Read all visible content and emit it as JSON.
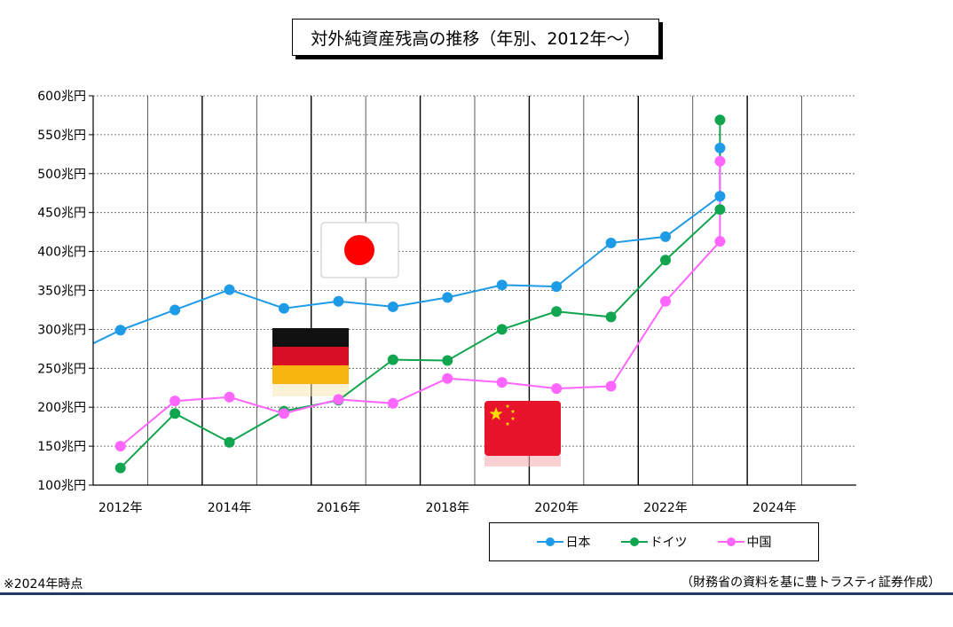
{
  "chart_data": {
    "type": "line",
    "title": "対外純資産残高の推移（年別、2012年～）",
    "y_unit": "兆円",
    "ylim": [
      100,
      600
    ],
    "y_ticks": [
      {
        "value": 100,
        "label": "100兆円"
      },
      {
        "value": 150,
        "label": "150兆円"
      },
      {
        "value": 200,
        "label": "200兆円"
      },
      {
        "value": 250,
        "label": "250兆円"
      },
      {
        "value": 300,
        "label": "300兆円"
      },
      {
        "value": 350,
        "label": "350兆円"
      },
      {
        "value": 400,
        "label": "400兆円"
      },
      {
        "value": 450,
        "label": "450兆円"
      },
      {
        "value": 500,
        "label": "500兆円"
      },
      {
        "value": 550,
        "label": "550兆円"
      },
      {
        "value": 600,
        "label": "600兆円"
      }
    ],
    "xlim": [
      2011.5,
      2025.5
    ],
    "x_ticks": [
      {
        "value": 2012,
        "label": "2012年"
      },
      {
        "value": 2014,
        "label": "2014年"
      },
      {
        "value": 2016,
        "label": "2016年"
      },
      {
        "value": 2018,
        "label": "2018年"
      },
      {
        "value": 2020,
        "label": "2020年"
      },
      {
        "value": 2022,
        "label": "2022年"
      },
      {
        "value": 2024,
        "label": "2024年"
      }
    ],
    "grid": true,
    "legend_position": "bottom-right",
    "series": [
      {
        "name": "日本",
        "color": "#1e9be6",
        "flag": "japan-flag",
        "points": [
          {
            "x": 2012,
            "y": 299
          },
          {
            "x": 2013,
            "y": 325
          },
          {
            "x": 2014,
            "y": 351
          },
          {
            "x": 2015,
            "y": 327
          },
          {
            "x": 2016,
            "y": 336
          },
          {
            "x": 2017,
            "y": 329
          },
          {
            "x": 2018,
            "y": 341
          },
          {
            "x": 2019,
            "y": 357
          },
          {
            "x": 2020,
            "y": 355
          },
          {
            "x": 2021,
            "y": 411
          },
          {
            "x": 2022,
            "y": 419
          },
          {
            "x": 2023,
            "y": 471
          },
          {
            "x": 2023,
            "y": 533
          }
        ],
        "lead_in": {
          "x": 2011.5,
          "y": 282
        }
      },
      {
        "name": "ドイツ",
        "color": "#12a550",
        "flag": "germany-flag",
        "points": [
          {
            "x": 2012,
            "y": 122
          },
          {
            "x": 2013,
            "y": 192
          },
          {
            "x": 2014,
            "y": 155
          },
          {
            "x": 2015,
            "y": 195
          },
          {
            "x": 2016,
            "y": 209
          },
          {
            "x": 2017,
            "y": 261
          },
          {
            "x": 2018,
            "y": 260
          },
          {
            "x": 2019,
            "y": 300
          },
          {
            "x": 2020,
            "y": 323
          },
          {
            "x": 2021,
            "y": 316
          },
          {
            "x": 2022,
            "y": 389
          },
          {
            "x": 2023,
            "y": 454
          },
          {
            "x": 2023,
            "y": 569
          }
        ]
      },
      {
        "name": "中国",
        "color": "#ff66ff",
        "flag": "china-flag",
        "points": [
          {
            "x": 2012,
            "y": 150
          },
          {
            "x": 2013,
            "y": 208
          },
          {
            "x": 2014,
            "y": 213
          },
          {
            "x": 2015,
            "y": 192
          },
          {
            "x": 2016,
            "y": 210
          },
          {
            "x": 2017,
            "y": 205
          },
          {
            "x": 2018,
            "y": 237
          },
          {
            "x": 2019,
            "y": 232
          },
          {
            "x": 2020,
            "y": 224
          },
          {
            "x": 2021,
            "y": 227
          },
          {
            "x": 2022,
            "y": 336
          },
          {
            "x": 2023,
            "y": 413
          },
          {
            "x": 2023,
            "y": 516
          }
        ]
      }
    ]
  },
  "footnote_left": "※2024年時点",
  "footnote_right": "（財務省の資料を基に豊トラスティ証券作成）"
}
